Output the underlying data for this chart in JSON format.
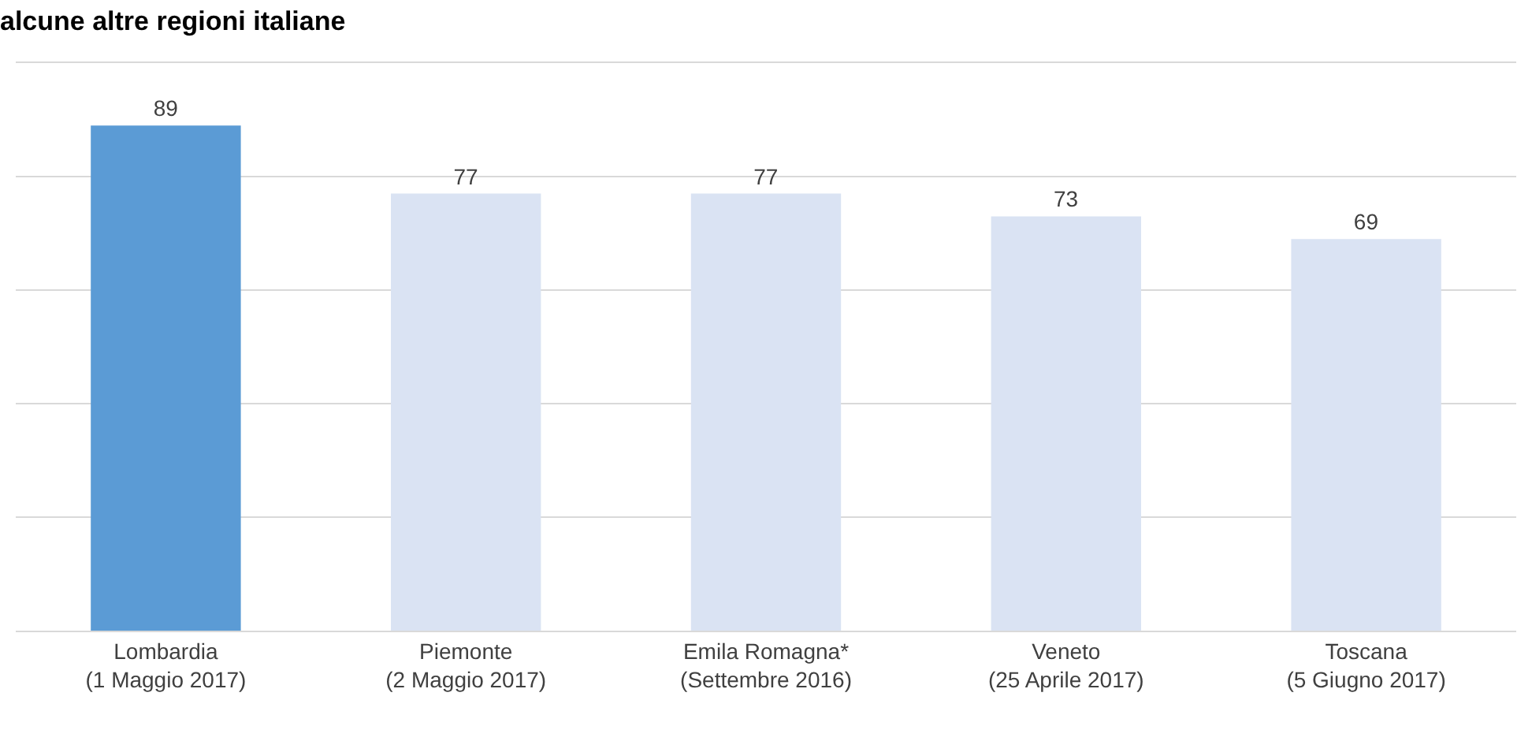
{
  "chart_data": {
    "type": "bar",
    "title": "alcune altre regioni italiane",
    "categories": [
      "Lombardia\n(1 Maggio 2017)",
      "Piemonte\n(2 Maggio 2017)",
      "Emila Romagna*\n(Settembre 2016)",
      "Veneto\n(25 Aprile 2017)",
      "Toscana\n(5 Giugno 2017)"
    ],
    "values": [
      89,
      77,
      77,
      73,
      69
    ],
    "colors": [
      "#5b9bd5",
      "#dae3f3",
      "#dae3f3",
      "#dae3f3",
      "#dae3f3"
    ],
    "data_labels": true,
    "ylim": [
      0,
      100
    ],
    "yticks": [
      {
        "value": 0,
        "label": null
      },
      {
        "value": 20,
        "label": null
      },
      {
        "value": 40,
        "label": null
      },
      {
        "value": 60,
        "label": null
      },
      {
        "value": 80,
        "label": null
      },
      {
        "value": 100,
        "label": null
      }
    ],
    "tick_labels": "x",
    "grid": "y"
  }
}
